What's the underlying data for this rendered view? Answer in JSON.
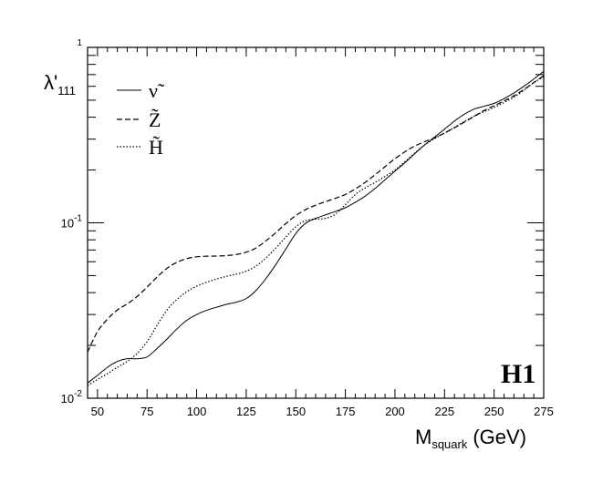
{
  "chart_data": {
    "type": "line",
    "title": "",
    "ylabel": "λ'₁₁₁",
    "ylabel_main": "λ'",
    "ylabel_sub": "111",
    "xlabel_main": "M",
    "xlabel_sub": "squark",
    "xlabel_unit": "(GeV)",
    "xlim": [
      45,
      275
    ],
    "ylim": [
      0.01,
      1
    ],
    "yscale": "log",
    "grid": false,
    "legend_position": "top-left",
    "x_ticks": [
      50,
      75,
      100,
      125,
      150,
      175,
      200,
      225,
      250,
      275
    ],
    "x_tick_labels": [
      "50",
      "75",
      "100",
      "125",
      "150",
      "175",
      "200",
      "225",
      "250",
      "275"
    ],
    "y_ticks": [
      {
        "value": 0.01,
        "base": "10",
        "exp": "-2"
      },
      {
        "value": 0.1,
        "base": "10",
        "exp": "-1"
      },
      {
        "value": 1,
        "base": "",
        "exp": "1"
      }
    ],
    "series": [
      {
        "name": "ν̃",
        "style": "solid",
        "x": [
          45,
          50,
          55,
          60,
          65,
          70,
          75,
          80,
          85,
          90,
          95,
          100,
          105,
          110,
          115,
          120,
          125,
          130,
          135,
          140,
          145,
          150,
          155,
          160,
          165,
          170,
          175,
          180,
          185,
          190,
          195,
          200,
          205,
          210,
          215,
          220,
          225,
          230,
          235,
          240,
          245,
          250,
          255,
          260,
          265,
          270,
          275
        ],
        "y": [
          0.0122,
          0.0135,
          0.015,
          0.0162,
          0.0168,
          0.0168,
          0.0172,
          0.0192,
          0.0217,
          0.0248,
          0.0278,
          0.03,
          0.0317,
          0.033,
          0.0343,
          0.0353,
          0.037,
          0.0412,
          0.0482,
          0.058,
          0.071,
          0.087,
          0.0995,
          0.106,
          0.111,
          0.116,
          0.122,
          0.131,
          0.142,
          0.157,
          0.176,
          0.197,
          0.22,
          0.248,
          0.278,
          0.308,
          0.342,
          0.38,
          0.416,
          0.445,
          0.462,
          0.48,
          0.51,
          0.55,
          0.6,
          0.66,
          0.73
        ]
      },
      {
        "name": "Z̃",
        "style": "dashed",
        "x": [
          45,
          50,
          55,
          60,
          65,
          70,
          75,
          80,
          85,
          90,
          95,
          100,
          105,
          110,
          115,
          120,
          125,
          130,
          135,
          140,
          145,
          150,
          155,
          160,
          165,
          170,
          175,
          180,
          185,
          190,
          195,
          200,
          205,
          210,
          215,
          220,
          225,
          230,
          235,
          240,
          245,
          250,
          255,
          260,
          265,
          270,
          275
        ],
        "y": [
          0.0183,
          0.024,
          0.0282,
          0.0318,
          0.0345,
          0.038,
          0.043,
          0.049,
          0.055,
          0.0595,
          0.0625,
          0.064,
          0.0645,
          0.0646,
          0.065,
          0.066,
          0.068,
          0.072,
          0.079,
          0.088,
          0.099,
          0.11,
          0.119,
          0.126,
          0.132,
          0.138,
          0.145,
          0.156,
          0.17,
          0.188,
          0.209,
          0.232,
          0.254,
          0.274,
          0.29,
          0.305,
          0.325,
          0.348,
          0.375,
          0.405,
          0.437,
          0.465,
          0.495,
          0.53,
          0.575,
          0.63,
          0.69
        ]
      },
      {
        "name": "H̃",
        "style": "dotted",
        "x": [
          45,
          50,
          55,
          60,
          65,
          70,
          75,
          80,
          85,
          90,
          95,
          100,
          105,
          110,
          115,
          120,
          125,
          130,
          135,
          140,
          145,
          150,
          155,
          160,
          165,
          170,
          175,
          180,
          185,
          190,
          195,
          200,
          205,
          210,
          215,
          220,
          225,
          230,
          235,
          240,
          245,
          250,
          255,
          260,
          265,
          270,
          275
        ],
        "y": [
          0.0118,
          0.0128,
          0.0138,
          0.015,
          0.0162,
          0.018,
          0.021,
          0.026,
          0.0318,
          0.0365,
          0.0405,
          0.0435,
          0.0458,
          0.0478,
          0.0495,
          0.051,
          0.053,
          0.0568,
          0.063,
          0.072,
          0.083,
          0.095,
          0.103,
          0.105,
          0.106,
          0.112,
          0.127,
          0.145,
          0.158,
          0.17,
          0.184,
          0.2,
          0.223,
          0.25,
          0.278,
          0.302,
          0.325,
          0.35,
          0.378,
          0.405,
          0.43,
          0.455,
          0.485,
          0.52,
          0.57,
          0.63,
          0.68
        ]
      }
    ],
    "annotation": "H1"
  }
}
